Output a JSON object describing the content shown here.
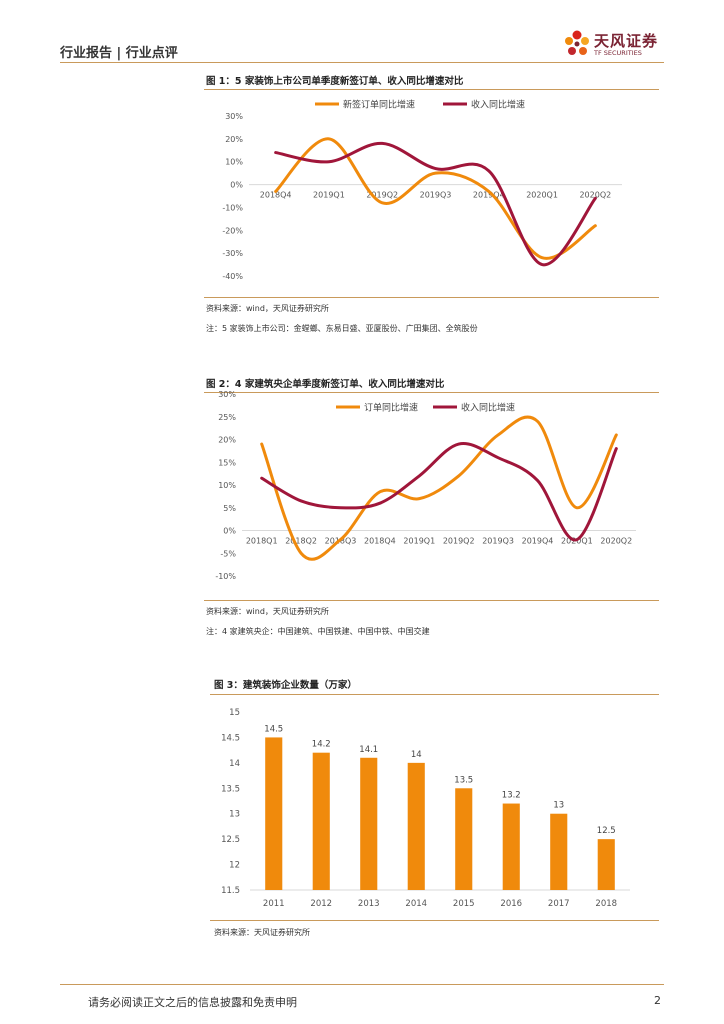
{
  "header": {
    "section": "行业报告 | 行业点评",
    "brand": "天风证券",
    "brand_en": "TF SECURITIES"
  },
  "figures": [
    {
      "title": "图 1：5 家装饰上市公司单季度新签订单、收入同比增速对比",
      "source": "资料来源：wind，天风证券研究所",
      "note": "注：5 家装饰上市公司：金螳螂、东易日盛、亚厦股份、广田集团、全筑股份"
    },
    {
      "title": "图 2：4 家建筑央企单季度新签订单、收入同比增速对比",
      "source": "资料来源：wind，天风证券研究所",
      "note": "注：4 家建筑央企：中国建筑、中国铁建、中国中铁、中国交建"
    },
    {
      "title": "图 3：建筑装饰企业数量（万家）",
      "source": "资料来源：天风证券研究所"
    }
  ],
  "footer": {
    "disclaimer": "请务必阅读正文之后的信息披露和免责申明",
    "page": "2"
  },
  "colors": {
    "orange": "#f08a0c",
    "crimson": "#a0163a",
    "rule": "#c99a5b"
  },
  "chart_data": [
    {
      "type": "line",
      "categories": [
        "2018Q4",
        "2019Q1",
        "2019Q2",
        "2019Q3",
        "2019Q4",
        "2020Q1",
        "2020Q2"
      ],
      "yticks": [
        "30%",
        "20%",
        "10%",
        "0%",
        "-10%",
        "-20%",
        "-30%",
        "-40%"
      ],
      "ylim": [
        -40,
        30
      ],
      "series": [
        {
          "name": "新签订单同比增速",
          "color": "#f08a0c",
          "values": [
            -3,
            20,
            -8,
            5,
            -3,
            -32,
            -18
          ]
        },
        {
          "name": "收入同比增速",
          "color": "#a0163a",
          "values": [
            14,
            10,
            18,
            7,
            6,
            -35,
            -6
          ]
        }
      ],
      "legend": "top"
    },
    {
      "type": "line",
      "categories": [
        "2018Q1",
        "2018Q2",
        "2018Q3",
        "2018Q4",
        "2019Q1",
        "2019Q2",
        "2019Q3",
        "2019Q4",
        "2020Q1",
        "2020Q2"
      ],
      "yticks": [
        "30%",
        "25%",
        "20%",
        "15%",
        "10%",
        "5%",
        "0%",
        "-5%",
        "-10%"
      ],
      "ylim": [
        -10,
        30
      ],
      "series": [
        {
          "name": "订单同比增速",
          "color": "#f08a0c",
          "values": [
            19,
            -5,
            -2,
            8.5,
            7,
            12,
            21,
            24,
            5,
            21
          ]
        },
        {
          "name": "收入同比增速",
          "color": "#a0163a",
          "values": [
            11.5,
            6.5,
            5,
            6,
            12,
            19,
            16,
            11,
            -2,
            18
          ]
        }
      ],
      "legend": "top"
    },
    {
      "type": "bar",
      "categories": [
        "2011",
        "2012",
        "2013",
        "2014",
        "2015",
        "2016",
        "2017",
        "2018"
      ],
      "values": [
        14.5,
        14.2,
        14.1,
        14,
        13.5,
        13.2,
        13,
        12.5
      ],
      "data_labels": [
        "14.5",
        "14.2",
        "14.1",
        "14",
        "13.5",
        "13.2",
        "13",
        "12.5"
      ],
      "yticks": [
        "15",
        "14.5",
        "14",
        "13.5",
        "13",
        "12.5",
        "12",
        "11.5"
      ],
      "ylim": [
        11.5,
        15
      ],
      "color": "#f08a0c"
    }
  ]
}
